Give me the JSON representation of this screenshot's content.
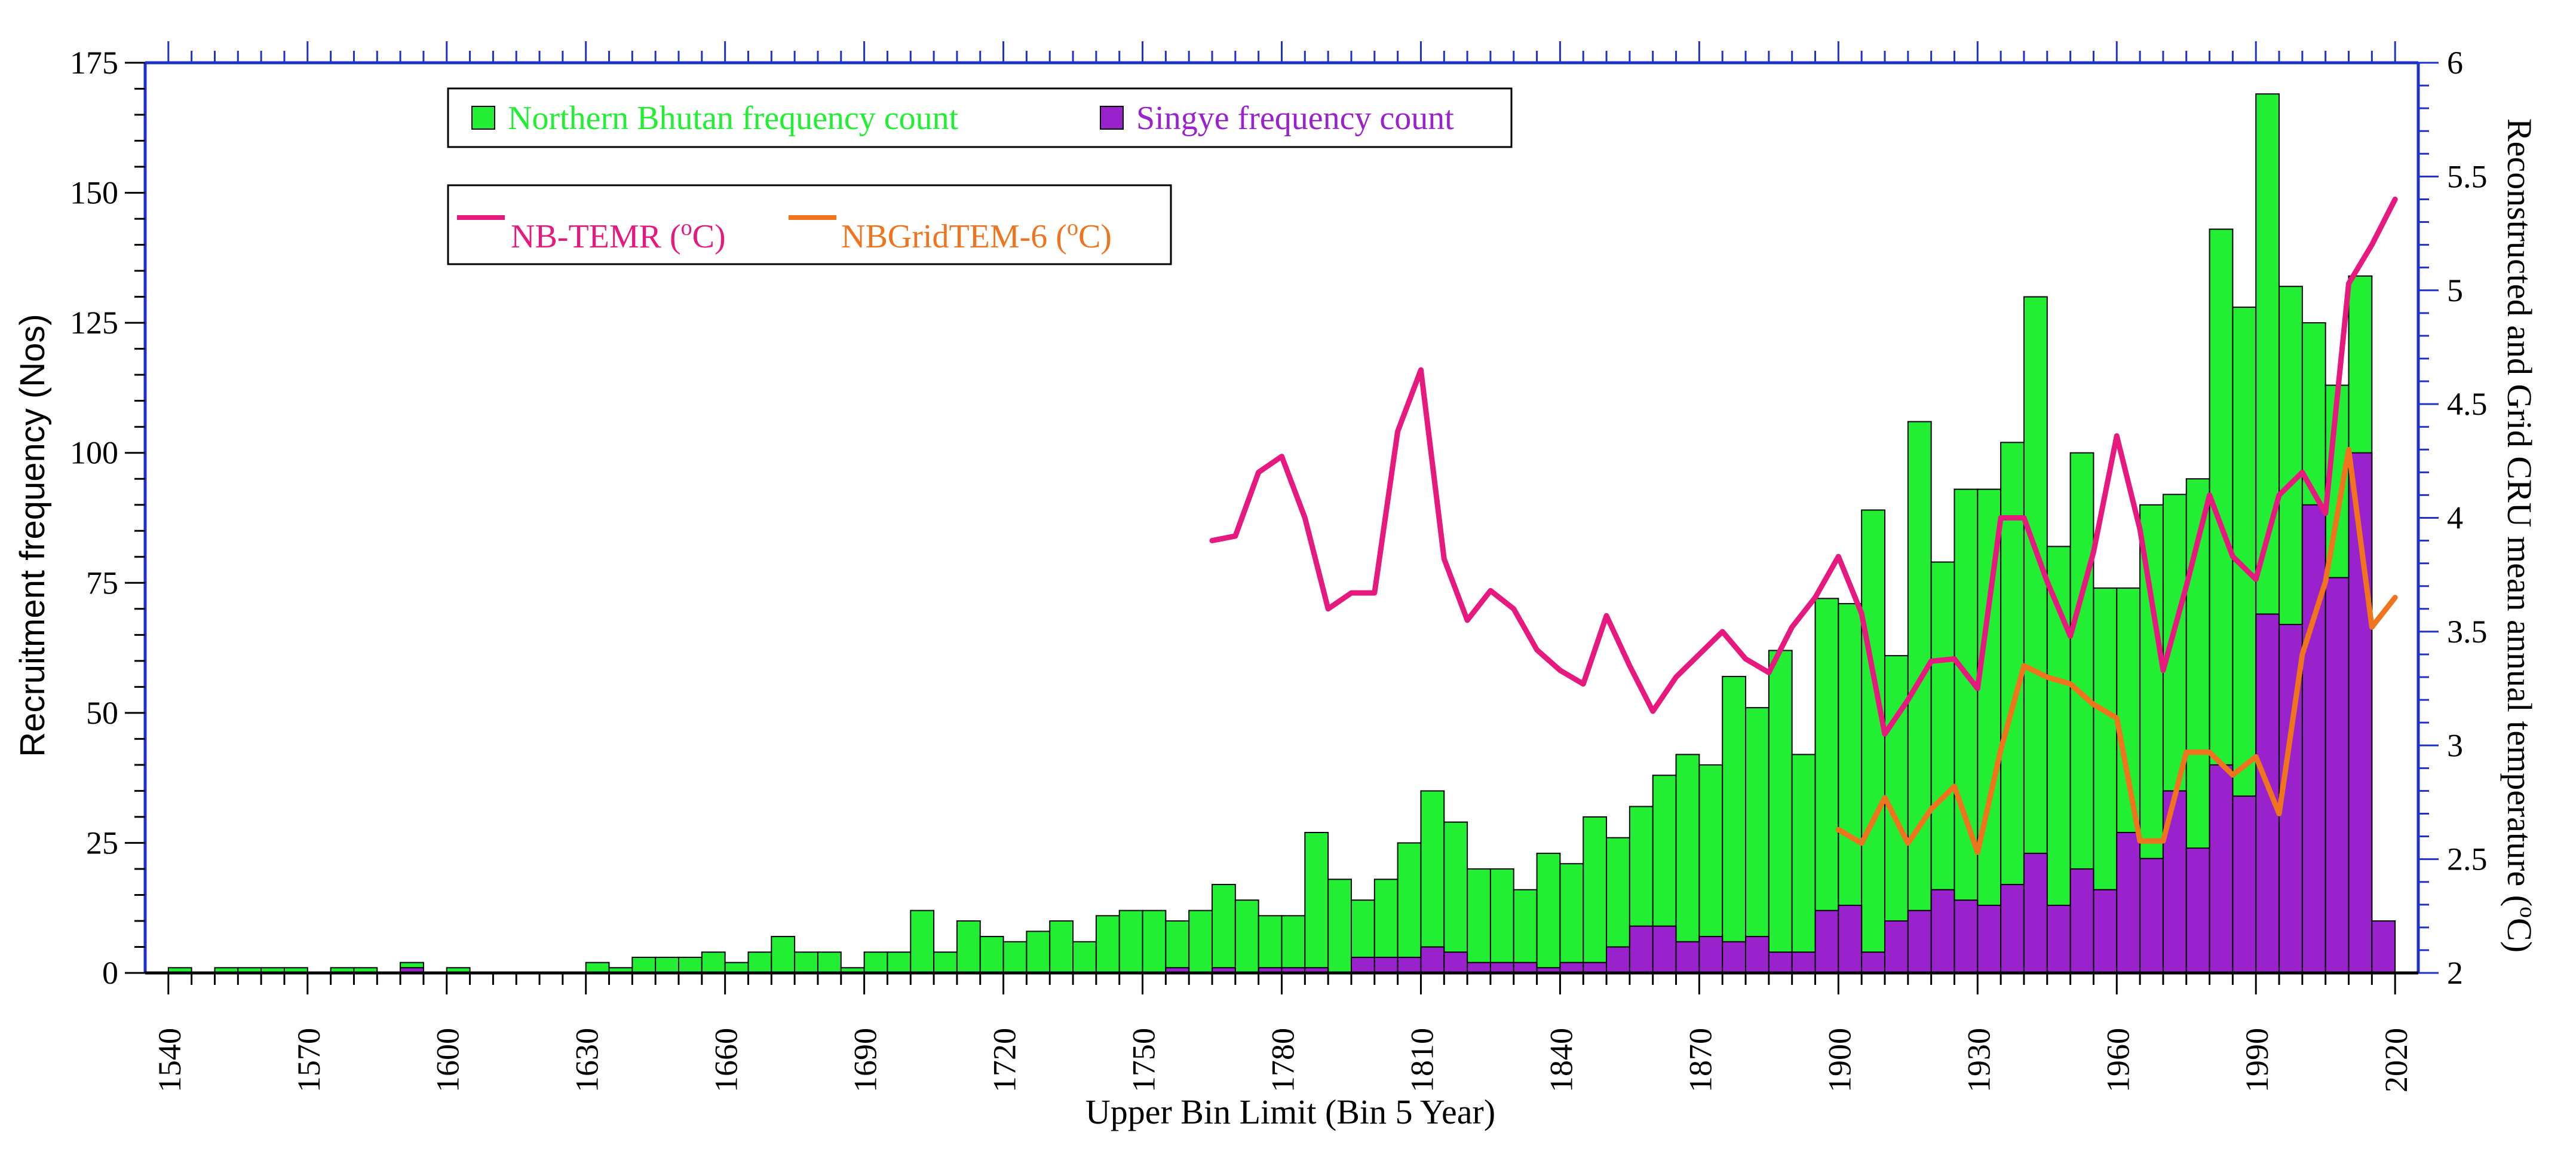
{
  "chart_data": {
    "type": "bar",
    "title": "",
    "xlabel": "Upper Bin Limit (Bin 5 Year)",
    "ylabel": "Recruitment frequency (Nos)",
    "y2label": "Reconstructed and Grid CRU mean annual temperature (°C)",
    "ylabel_right_parts": [
      "Reconstructed and Grid CRU mean annual temperature (",
      "o",
      "C)"
    ],
    "xlim": [
      1535,
      2025
    ],
    "ylim": [
      0,
      175
    ],
    "y2lim": [
      2,
      6
    ],
    "xticks": [
      "1540",
      "1570",
      "1600",
      "1630",
      "1660",
      "1690",
      "1720",
      "1750",
      "1780",
      "1810",
      "1840",
      "1870",
      "1900",
      "1930",
      "1960",
      "1990",
      "2020"
    ],
    "yticks": [
      "0",
      "25",
      "50",
      "75",
      "100",
      "125",
      "150",
      "175"
    ],
    "y2ticks": [
      "2",
      "2.5",
      "3",
      "3.5",
      "4",
      "4.5",
      "5",
      "5.5",
      "6"
    ],
    "colors": {
      "northern_bhutan": "#22ee33",
      "singye": "#9a22cc",
      "nb_temr": "#e6197f",
      "nbgrid": "#f0731e",
      "axis": "#1e32c8"
    },
    "legend": {
      "bars": [
        {
          "label": "Northern Bhutan frequency count",
          "color": "#22ee33"
        },
        {
          "label": "Singye frequency count",
          "color": "#9a22cc"
        }
      ],
      "lines": [
        {
          "label_main": "NB-TEMR (",
          "label_sup": "o",
          "label_end": "C)",
          "color": "#e6197f"
        },
        {
          "label_main": "NBGridTEM-6 (",
          "label_sup": "o",
          "label_end": "C)",
          "color": "#f0731e"
        }
      ]
    },
    "series": [
      {
        "name": "Northern Bhutan frequency count",
        "kind": "bar",
        "x": [
          1545,
          1550,
          1555,
          1560,
          1565,
          1570,
          1575,
          1580,
          1585,
          1590,
          1595,
          1600,
          1605,
          1610,
          1615,
          1620,
          1625,
          1630,
          1635,
          1640,
          1645,
          1650,
          1655,
          1660,
          1665,
          1670,
          1675,
          1680,
          1685,
          1690,
          1695,
          1700,
          1705,
          1710,
          1715,
          1720,
          1725,
          1730,
          1735,
          1740,
          1745,
          1750,
          1755,
          1760,
          1765,
          1770,
          1775,
          1780,
          1785,
          1790,
          1795,
          1800,
          1805,
          1810,
          1815,
          1820,
          1825,
          1830,
          1835,
          1840,
          1845,
          1850,
          1855,
          1860,
          1865,
          1870,
          1875,
          1880,
          1885,
          1890,
          1895,
          1900,
          1905,
          1910,
          1915,
          1920,
          1925,
          1930,
          1935,
          1940,
          1945,
          1950,
          1955,
          1960,
          1965,
          1970,
          1975,
          1980,
          1985,
          1990,
          1995,
          2000,
          2005,
          2010,
          2015,
          2020
        ],
        "values": [
          1,
          0,
          1,
          1,
          1,
          1,
          0,
          1,
          1,
          0,
          2,
          0,
          1,
          0,
          0,
          0,
          0,
          0,
          2,
          1,
          3,
          3,
          3,
          4,
          2,
          4,
          7,
          4,
          4,
          1,
          4,
          4,
          12,
          4,
          10,
          7,
          6,
          8,
          10,
          6,
          11,
          12,
          12,
          10,
          12,
          17,
          14,
          11,
          11,
          27,
          18,
          14,
          18,
          25,
          35,
          29,
          20,
          20,
          16,
          23,
          21,
          30,
          26,
          32,
          38,
          42,
          40,
          57,
          51,
          62,
          42,
          72,
          71,
          89,
          61,
          106,
          79,
          93,
          93,
          102,
          130,
          82,
          100,
          74,
          74,
          90,
          92,
          95,
          143,
          128,
          169,
          132,
          125,
          113,
          134,
          0
        ]
      },
      {
        "name": "Singye frequency count",
        "kind": "bar",
        "x": [
          1545,
          1550,
          1555,
          1560,
          1565,
          1570,
          1575,
          1580,
          1585,
          1590,
          1595,
          1600,
          1605,
          1610,
          1615,
          1620,
          1625,
          1630,
          1635,
          1640,
          1645,
          1650,
          1655,
          1660,
          1665,
          1670,
          1675,
          1680,
          1685,
          1690,
          1695,
          1700,
          1705,
          1710,
          1715,
          1720,
          1725,
          1730,
          1735,
          1740,
          1745,
          1750,
          1755,
          1760,
          1765,
          1770,
          1775,
          1780,
          1785,
          1790,
          1795,
          1800,
          1805,
          1810,
          1815,
          1820,
          1825,
          1830,
          1835,
          1840,
          1845,
          1850,
          1855,
          1860,
          1865,
          1870,
          1875,
          1880,
          1885,
          1890,
          1895,
          1900,
          1905,
          1910,
          1915,
          1920,
          1925,
          1930,
          1935,
          1940,
          1945,
          1950,
          1955,
          1960,
          1965,
          1970,
          1975,
          1980,
          1985,
          1990,
          1995,
          2000,
          2005,
          2010,
          2015,
          2020
        ],
        "values": [
          0,
          0,
          0,
          0,
          0,
          0,
          0,
          0,
          0,
          0,
          1,
          0,
          0,
          0,
          0,
          0,
          0,
          0,
          0,
          0,
          0,
          0,
          0,
          0,
          0,
          0,
          0,
          0,
          0,
          0,
          0,
          0,
          0,
          0,
          0,
          0,
          0,
          0,
          0,
          0,
          0,
          0,
          0,
          1,
          0,
          1,
          0,
          1,
          1,
          1,
          0,
          3,
          3,
          3,
          5,
          4,
          2,
          2,
          2,
          1,
          2,
          2,
          5,
          9,
          9,
          6,
          7,
          6,
          7,
          4,
          4,
          12,
          13,
          4,
          10,
          12,
          16,
          14,
          13,
          17,
          23,
          13,
          20,
          16,
          27,
          22,
          35,
          24,
          40,
          34,
          69,
          67,
          90,
          76,
          100,
          10
        ]
      }
    ],
    "lines": [
      {
        "name": "NB-TEMR",
        "axis": "right",
        "x": [
          1765,
          1770,
          1775,
          1780,
          1785,
          1790,
          1795,
          1800,
          1805,
          1810,
          1815,
          1820,
          1825,
          1830,
          1835,
          1840,
          1845,
          1850,
          1855,
          1860,
          1865,
          1870,
          1875,
          1880,
          1885,
          1890,
          1895,
          1900,
          1905,
          1910,
          1915,
          1920,
          1925,
          1930,
          1935,
          1940,
          1945,
          1950,
          1955,
          1960,
          1965,
          1970,
          1975,
          1980,
          1985,
          1990,
          1995,
          2000,
          2005,
          2010,
          2015,
          2020
        ],
        "values": [
          3.9,
          3.92,
          4.2,
          4.27,
          4.0,
          3.6,
          3.67,
          3.67,
          4.38,
          4.65,
          3.82,
          3.55,
          3.68,
          3.6,
          3.42,
          3.33,
          3.27,
          3.57,
          3.35,
          3.15,
          3.3,
          3.4,
          3.5,
          3.38,
          3.32,
          3.52,
          3.65,
          3.83,
          3.58,
          3.05,
          3.2,
          3.37,
          3.38,
          3.25,
          4.0,
          4.0,
          3.72,
          3.48,
          3.85,
          4.36,
          3.95,
          3.33,
          3.7,
          4.1,
          3.83,
          3.73,
          4.1,
          4.2,
          4.02,
          5.03,
          5.2,
          5.4
        ]
      },
      {
        "name": "NBGridTEM-6",
        "axis": "right",
        "x": [
          1900,
          1905,
          1910,
          1915,
          1920,
          1925,
          1930,
          1935,
          1940,
          1945,
          1950,
          1955,
          1960,
          1965,
          1970,
          1975,
          1980,
          1985,
          1990,
          1995,
          2000,
          2005,
          2010,
          2015,
          2020
        ],
        "values": [
          2.63,
          2.57,
          2.77,
          2.57,
          2.72,
          2.82,
          2.53,
          2.98,
          3.35,
          3.3,
          3.27,
          3.18,
          3.12,
          2.58,
          2.58,
          2.97,
          2.97,
          2.87,
          2.95,
          2.7,
          3.4,
          3.72,
          4.3,
          3.52,
          3.65
        ]
      }
    ]
  }
}
